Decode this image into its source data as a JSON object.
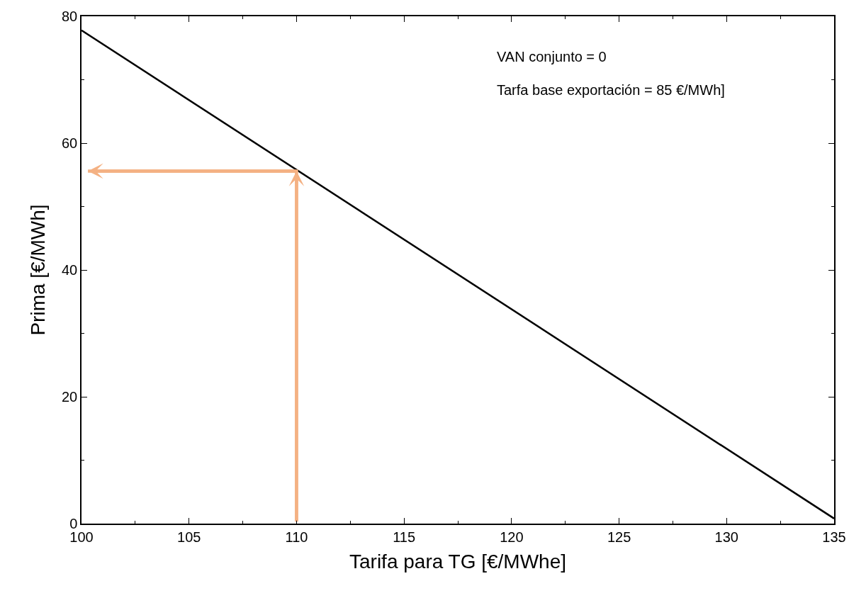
{
  "chart_data": {
    "type": "line",
    "xlabel": "Tarifa para TG [€/MWhe]",
    "ylabel": "Prima [€/MWh]",
    "annotations": [
      "VAN conjunto = 0",
      "Tarfa base exportación = 85 €/MWh]"
    ],
    "series": [
      {
        "color": "#000000",
        "x": [
          100,
          135
        ],
        "values": [
          77.8,
          0.8
        ]
      },
      {
        "color": "#f4b183",
        "x": [
          110,
          110,
          100.3
        ],
        "values": [
          0.3,
          55.6,
          55.6
        ]
      }
    ],
    "xlim": [
      100,
      135
    ],
    "xticks": [
      100,
      105,
      110,
      115,
      120,
      125,
      130,
      135
    ],
    "ylim": [
      0,
      80
    ],
    "yticks": [
      0,
      20,
      40,
      60,
      80
    ],
    "marker": "none",
    "line_style": "solid"
  }
}
